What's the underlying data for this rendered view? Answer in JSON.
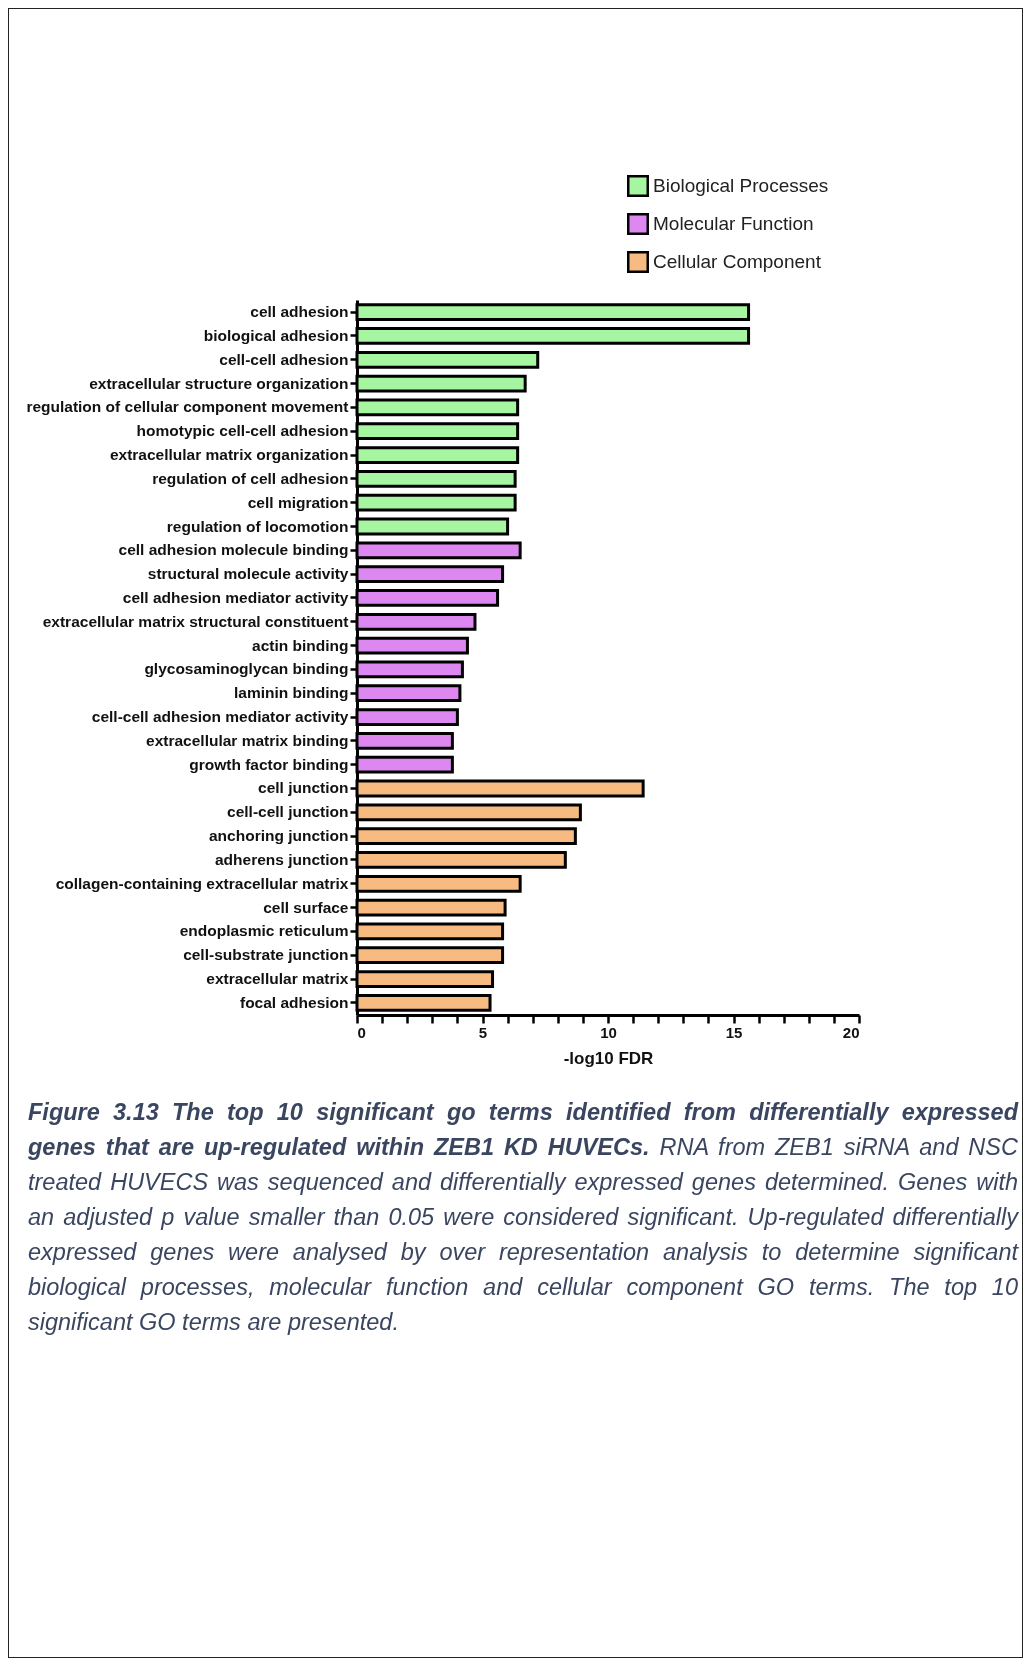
{
  "chart_data": {
    "type": "bar",
    "orientation": "horizontal",
    "xlabel": "-log10 FDR",
    "legend": "top right",
    "categories": [
      "cell adhesion",
      "biological adhesion",
      "cell-cell adhesion",
      "extracellular structure organization",
      "regulation of cellular component movement",
      "homotypic cell-cell adhesion",
      "extracellular matrix organization",
      "regulation of cell adhesion",
      "cell migration",
      "regulation of locomotion",
      "cell adhesion molecule binding",
      "structural molecule activity",
      "cell adhesion mediator activity",
      "extracellular matrix structural constituent",
      "actin binding",
      "glycosaminoglycan binding",
      "laminin binding",
      "cell-cell adhesion mediator activity",
      "extracellular matrix binding",
      "growth factor binding",
      "cell junction",
      "cell-cell junction",
      "anchoring junction",
      "adherens junction",
      "collagen-containing extracellular matrix",
      "cell surface",
      "endoplasmic reticulum",
      "cell-substrate junction",
      "extracellular matrix",
      "focal adhesion"
    ],
    "series": [
      {
        "name": "Biological Processes",
        "color": "#a6f5a0",
        "values": [
          15.6,
          15.6,
          7.2,
          6.7,
          6.4,
          6.4,
          6.4,
          6.3,
          6.3,
          6.0,
          null,
          null,
          null,
          null,
          null,
          null,
          null,
          null,
          null,
          null,
          null,
          null,
          null,
          null,
          null,
          null,
          null,
          null,
          null,
          null
        ]
      },
      {
        "name": "Molecular Function",
        "color": "#dd88f0",
        "values": [
          null,
          null,
          null,
          null,
          null,
          null,
          null,
          null,
          null,
          null,
          6.5,
          5.8,
          5.6,
          4.7,
          4.4,
          4.2,
          4.1,
          4.0,
          3.8,
          3.8,
          null,
          null,
          null,
          null,
          null,
          null,
          null,
          null,
          null,
          null
        ]
      },
      {
        "name": "Cellular Component",
        "color": "#f7bb82",
        "values": [
          null,
          null,
          null,
          null,
          null,
          null,
          null,
          null,
          null,
          null,
          null,
          null,
          null,
          null,
          null,
          null,
          null,
          null,
          null,
          null,
          11.4,
          8.9,
          8.7,
          8.3,
          6.5,
          5.9,
          5.8,
          5.8,
          5.4,
          5.3
        ]
      }
    ],
    "xlim": [
      0,
      20
    ],
    "xticks": [
      0,
      {
        "value": 1,
        "label": null
      },
      {
        "value": 2,
        "label": null
      },
      {
        "value": 3,
        "label": null
      },
      {
        "value": 4,
        "label": null
      },
      5,
      {
        "value": 6,
        "label": null
      },
      {
        "value": 7,
        "label": null
      },
      {
        "value": 8,
        "label": null
      },
      {
        "value": 9,
        "label": null
      },
      10,
      {
        "value": 11,
        "label": null
      },
      {
        "value": 12,
        "label": null
      },
      {
        "value": 13,
        "label": null
      },
      {
        "value": 14,
        "label": null
      },
      15,
      {
        "value": 16,
        "label": null
      },
      {
        "value": 17,
        "label": null
      },
      {
        "value": 18,
        "label": null
      },
      {
        "value": 19,
        "label": null
      },
      20
    ],
    "annotations": [
      "Figure 3.13 The top 10 significant go terms identified from differentially expressed genes that are up-regulated within ZEB1 KD HUVECs.",
      "RNA from ZEB1 siRNA and NSC treated HUVECS was sequenced and differentially expressed genes determined. Genes with an adjusted p value smaller than 0.05 were considered significant. Up-regulated differentially expressed genes were analysed by over representation analysis to determine significant biological processes, molecular function and cellular component GO terms. The top 10 significant GO terms are presented."
    ]
  }
}
